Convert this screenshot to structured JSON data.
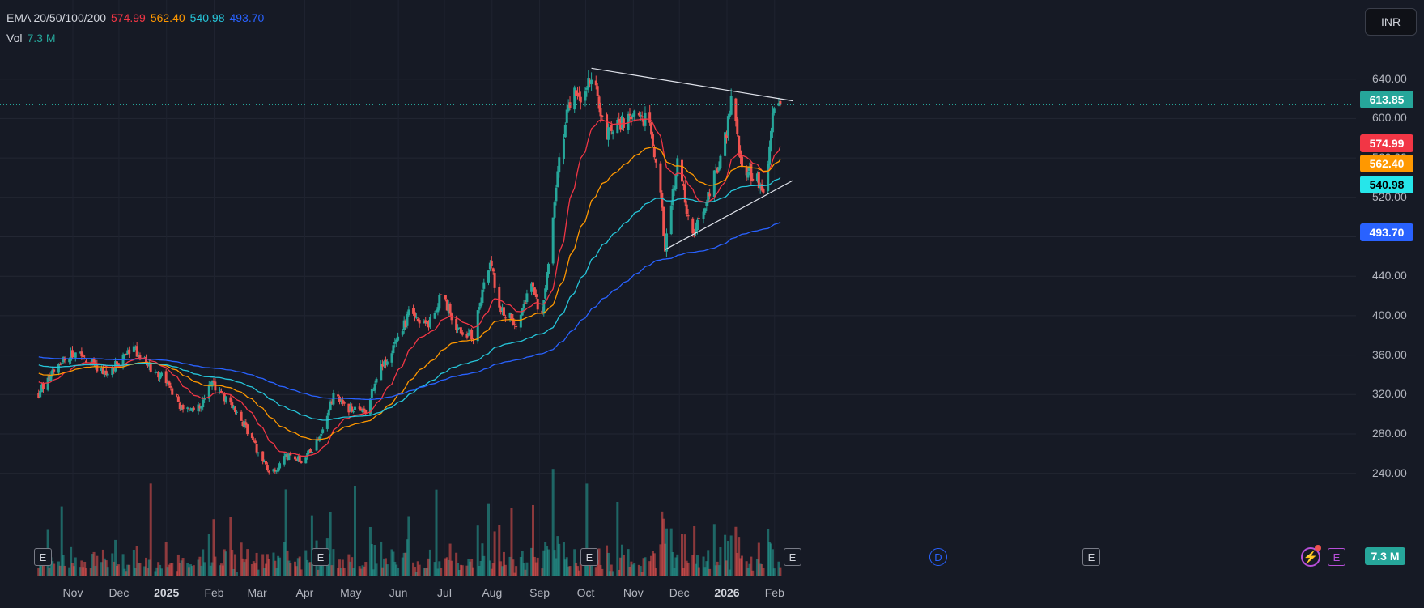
{
  "legend": {
    "ema_label": "EMA 20/50/100/200",
    "ema_values": [
      "574.99",
      "562.40",
      "540.98",
      "493.70"
    ],
    "vol_label": "Vol",
    "vol_value": "7.3 M"
  },
  "currency": "INR",
  "colors": {
    "background": "#161a25",
    "up": "#26a69a",
    "down": "#ef5350",
    "ema20": "#f23645",
    "ema50": "#ff9800",
    "ema100": "#26c6da",
    "ema200": "#2962ff",
    "trendline": "#e0e3eb"
  },
  "price_tags": {
    "last": "613.85",
    "ema20": "574.99",
    "ema50": "562.40",
    "ema100": "540.98",
    "ema200": "493.70",
    "volume": "7.3 M"
  },
  "events": {
    "earnings_label": "E",
    "dividend_label": "D"
  },
  "chart_data": {
    "type": "candlestick",
    "title": "",
    "ylim": [
      200,
      660
    ],
    "y_ticks": [
      "640.00",
      "600.00",
      "560.00",
      "520.00",
      "480.00",
      "440.00",
      "400.00",
      "360.00",
      "320.00",
      "280.00",
      "240.00"
    ],
    "x_ticks": [
      "Nov",
      "Dec",
      "2025",
      "Feb",
      "Mar",
      "Apr",
      "May",
      "Jun",
      "Jul",
      "Aug",
      "Sep",
      "Oct",
      "Nov",
      "Dec",
      "2026",
      "Feb"
    ],
    "last_price": 613.85,
    "price_path": [
      [
        "2024-10-15",
        320
      ],
      [
        "2024-10-25",
        348
      ],
      [
        "2024-11-05",
        362
      ],
      [
        "2024-11-15",
        357
      ],
      [
        "2024-11-25",
        343
      ],
      [
        "2024-12-05",
        350
      ],
      [
        "2024-12-15",
        368
      ],
      [
        "2024-12-25",
        350
      ],
      [
        "2025-01-05",
        335
      ],
      [
        "2025-01-15",
        310
      ],
      [
        "2025-01-25",
        300
      ],
      [
        "2025-02-05",
        332
      ],
      [
        "2025-02-15",
        312
      ],
      [
        "2025-02-25",
        292
      ],
      [
        "2025-03-05",
        268
      ],
      [
        "2025-03-15",
        238
      ],
      [
        "2025-03-25",
        258
      ],
      [
        "2025-04-05",
        252
      ],
      [
        "2025-04-15",
        275
      ],
      [
        "2025-04-25",
        318
      ],
      [
        "2025-05-05",
        305
      ],
      [
        "2025-05-15",
        300
      ],
      [
        "2025-05-25",
        345
      ],
      [
        "2025-06-05",
        372
      ],
      [
        "2025-06-15",
        408
      ],
      [
        "2025-06-25",
        388
      ],
      [
        "2025-07-05",
        422
      ],
      [
        "2025-07-15",
        385
      ],
      [
        "2025-07-25",
        380
      ],
      [
        "2025-08-05",
        455
      ],
      [
        "2025-08-12",
        405
      ],
      [
        "2025-08-22",
        392
      ],
      [
        "2025-09-01",
        428
      ],
      [
        "2025-09-08",
        400
      ],
      [
        "2025-09-20",
        570
      ],
      [
        "2025-09-28",
        630
      ],
      [
        "2025-10-05",
        615
      ],
      [
        "2025-10-10",
        648
      ],
      [
        "2025-10-20",
        585
      ],
      [
        "2025-11-05",
        605
      ],
      [
        "2025-11-15",
        600
      ],
      [
        "2025-11-22",
        555
      ],
      [
        "2025-11-27",
        470
      ],
      [
        "2025-12-05",
        555
      ],
      [
        "2025-12-15",
        480
      ],
      [
        "2025-12-25",
        520
      ],
      [
        "2026-01-05",
        580
      ],
      [
        "2026-01-10",
        625
      ],
      [
        "2026-01-15",
        555
      ],
      [
        "2026-01-25",
        540
      ],
      [
        "2026-01-31",
        522
      ],
      [
        "2026-02-05",
        610
      ],
      [
        "2026-02-10",
        613.85
      ]
    ],
    "ema": [
      {
        "name": "EMA 20",
        "last": 574.99
      },
      {
        "name": "EMA 50",
        "last": 562.4
      },
      {
        "name": "EMA 100",
        "last": 540.98
      },
      {
        "name": "EMA 200",
        "last": 493.7
      }
    ],
    "volume_last": "7.3 M",
    "trendlines": [
      {
        "from": [
          "2025-10-10",
          651
        ],
        "to": [
          "2026-02-18",
          618
        ]
      },
      {
        "from": [
          "2025-11-27",
          467
        ],
        "to": [
          "2026-02-18",
          537
        ]
      }
    ],
    "events": {
      "earnings": [
        "2024-10-25",
        "2025-02-05",
        "2025-05-10",
        "2025-08-05",
        "2025-11-12"
      ],
      "dividend": [
        "2025-09-27"
      ]
    }
  }
}
